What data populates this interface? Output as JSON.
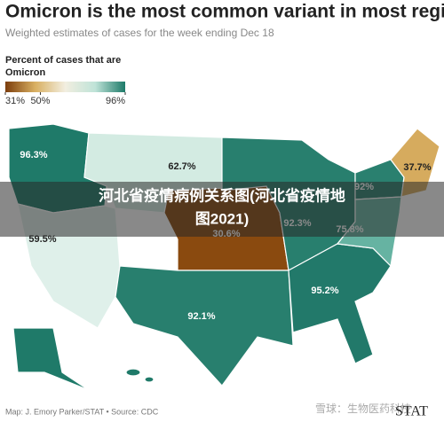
{
  "header": {
    "title": "Omicron is the most common variant in most regions",
    "subtitle": "Weighted estimates of cases for the week ending Dec 18"
  },
  "legend": {
    "title_lines": [
      "Percent of cases that are",
      "Omicron"
    ],
    "colors": [
      "#7c3d0c",
      "#d9b062",
      "#f2eee0",
      "#bfe3d8",
      "#1d7a69"
    ],
    "ticks": [
      {
        "value": 31,
        "label": "31%"
      },
      {
        "value": 50,
        "label": "50%"
      },
      {
        "value": 96,
        "label": "96%"
      }
    ]
  },
  "regions": [
    {
      "value": 96.3,
      "label": "96.3%",
      "color": "#1f7a69"
    },
    {
      "value": 62.7,
      "label": "62.7%",
      "color": "#d3ebe2"
    },
    {
      "value": 59.5,
      "label": "59.5%",
      "color": "#dff0ea"
    },
    {
      "value": 30.6,
      "label": "30.6%",
      "color": "#8a4a0f"
    },
    {
      "value": 92.3,
      "label": "92.3%",
      "color": "#287f6e"
    },
    {
      "value": 92.1,
      "label": "92.1%",
      "color": "#287f6e"
    },
    {
      "value": 95.2,
      "label": "95.2%",
      "color": "#22796a"
    },
    {
      "value": 92,
      "label": "92%",
      "color": "#2a806f"
    },
    {
      "value": 75.8,
      "label": "75.8%",
      "color": "#66b3a2"
    },
    {
      "value": 37.7,
      "label": "37.7%",
      "color": "#d6ab5e"
    }
  ],
  "banner": [
    "河北省疫情病例关系图(河北省疫情地",
    "图2021)"
  ],
  "credit": "Map: J. Emory Parker/STAT • Source: CDC",
  "watermark": "雪球：生物医药科技",
  "logo": "STAT"
}
